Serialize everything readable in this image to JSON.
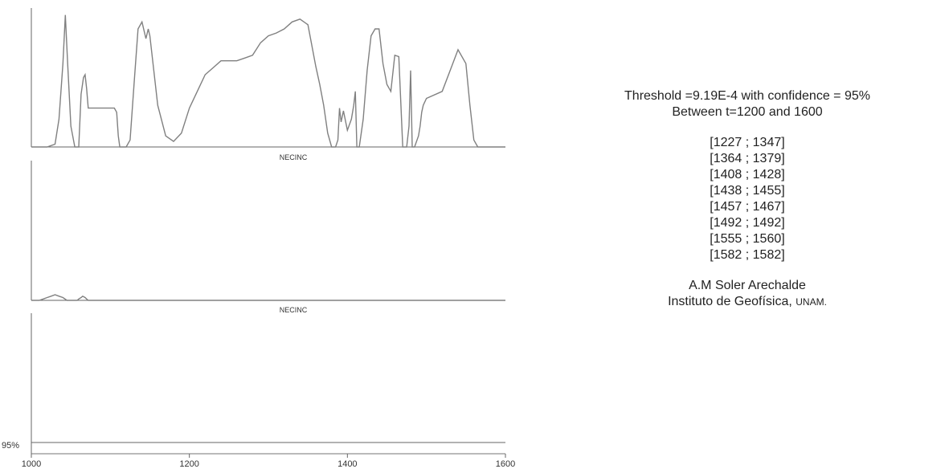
{
  "chart_data": [
    {
      "type": "line",
      "xlim": [
        1000,
        1600
      ],
      "grid": false,
      "series": [
        {
          "x": [
            1000,
            1010,
            1020,
            1030,
            1035,
            1040,
            1043,
            1046,
            1050,
            1055,
            1060,
            1063,
            1066,
            1068,
            1070,
            1072,
            1075,
            1080,
            1090,
            1100,
            1105,
            1108,
            1110,
            1112,
            1115,
            1120,
            1125,
            1130,
            1135,
            1140,
            1145,
            1148,
            1150,
            1155,
            1160,
            1170,
            1180,
            1190,
            1200,
            1210,
            1220,
            1230,
            1240,
            1250,
            1260,
            1270,
            1280,
            1290,
            1300,
            1310,
            1320,
            1330,
            1340,
            1350,
            1360,
            1365,
            1370,
            1375,
            1380,
            1385,
            1388,
            1390,
            1392,
            1395,
            1400,
            1405,
            1408,
            1410,
            1412,
            1415,
            1420,
            1425,
            1430,
            1435,
            1440,
            1445,
            1450,
            1455,
            1460,
            1465,
            1470,
            1475,
            1478,
            1480,
            1482,
            1485,
            1490,
            1492,
            1494,
            1496,
            1500,
            1520,
            1530,
            1540,
            1550,
            1555,
            1560,
            1565,
            1570,
            1600
          ],
          "y": [
            0,
            0,
            0,
            2,
            20,
            60,
            95,
            60,
            15,
            0,
            0,
            38,
            50,
            52,
            42,
            28,
            28,
            28,
            28,
            28,
            28,
            25,
            8,
            0,
            0,
            0,
            5,
            45,
            85,
            90,
            78,
            85,
            80,
            55,
            30,
            8,
            4,
            10,
            28,
            40,
            52,
            57,
            62,
            62,
            62,
            64,
            66,
            75,
            80,
            82,
            85,
            90,
            92,
            88,
            58,
            45,
            30,
            10,
            0,
            0,
            5,
            28,
            18,
            26,
            12,
            20,
            30,
            40,
            0,
            0,
            20,
            55,
            80,
            85,
            85,
            60,
            45,
            40,
            66,
            65,
            0,
            0,
            15,
            55,
            0,
            0,
            8,
            15,
            25,
            30,
            35,
            40,
            55,
            70,
            60,
            30,
            5,
            0,
            0,
            0
          ]
        }
      ]
    },
    {
      "type": "line",
      "xlim": [
        1000,
        1600
      ],
      "grid": false,
      "series": [
        {
          "x": [
            1000,
            1005,
            1010,
            1015,
            1020,
            1025,
            1030,
            1035,
            1040,
            1045,
            1050,
            1053,
            1055,
            1058,
            1060,
            1063,
            1065,
            1068,
            1070,
            1072,
            1075,
            1077,
            1080,
            1083,
            1085,
            1088,
            1090,
            1095,
            1100,
            1105,
            1110,
            1115,
            1120,
            1130,
            1140,
            1150,
            1160,
            1170,
            1180,
            1190,
            1200,
            1210,
            1220,
            1230,
            1240,
            1250,
            1260,
            1270,
            1280,
            1290,
            1300,
            1310,
            1320,
            1330,
            1340,
            1350,
            1360,
            1370,
            1378,
            1380,
            1385,
            1390,
            1400,
            1410,
            1415,
            1420,
            1430,
            1440,
            1450,
            1460,
            1470,
            1480,
            1490,
            1492,
            1494,
            1500,
            1510,
            1520,
            1530,
            1540,
            1550,
            1555,
            1560,
            1570,
            1580,
            1590,
            1600
          ],
          "y": [
            0,
            0,
            0,
            1,
            2,
            3,
            4,
            3,
            2,
            0,
            0,
            0,
            0,
            0,
            1,
            2,
            3,
            2,
            1,
            0,
            0,
            0,
            0,
            0,
            0,
            0,
            0,
            0,
            0,
            0,
            0,
            0,
            0,
            0,
            0,
            0,
            0,
            0,
            0,
            0,
            0,
            0,
            0,
            0,
            0,
            0,
            0,
            0,
            0,
            0,
            0,
            0,
            0,
            0,
            0,
            0,
            0,
            0,
            0,
            0,
            0,
            0,
            0,
            0,
            0,
            0,
            0,
            0,
            0,
            0,
            0,
            0,
            0,
            0,
            0,
            0,
            0,
            0,
            0,
            0,
            0,
            0,
            0,
            0,
            0,
            0,
            0
          ]
        }
      ]
    },
    {
      "type": "area",
      "xlim": [
        1000,
        1600
      ],
      "xticks": [
        1000,
        1200,
        1400,
        1600
      ],
      "grid": false,
      "threshold_label": "95%",
      "series": [
        {
          "x": [
            1000,
            1600
          ],
          "y": [
            0,
            0
          ]
        }
      ]
    }
  ],
  "panel_labels": [
    "NECINC",
    "NECINC"
  ],
  "info": {
    "threshold_line": "Threshold =9.19E-4 with confidence = 95%",
    "between_line": "Between t=1200 and 1600",
    "intervals": [
      "[1227 ; 1347]",
      "[1364 ; 1379]",
      "[1408 ; 1428]",
      "[1438 ; 1455]",
      "[1457 ; 1467]",
      "[1492 ; 1492]",
      "[1555 ; 1560]",
      "[1582 ; 1582]"
    ],
    "author": "A.M Soler Arechalde",
    "institute": "Instituto de Geofísica,",
    "institute_abbrev": "UNAM."
  },
  "colors": {
    "line": "#808080",
    "fill": "#7a7a7a",
    "axis": "#666666"
  }
}
